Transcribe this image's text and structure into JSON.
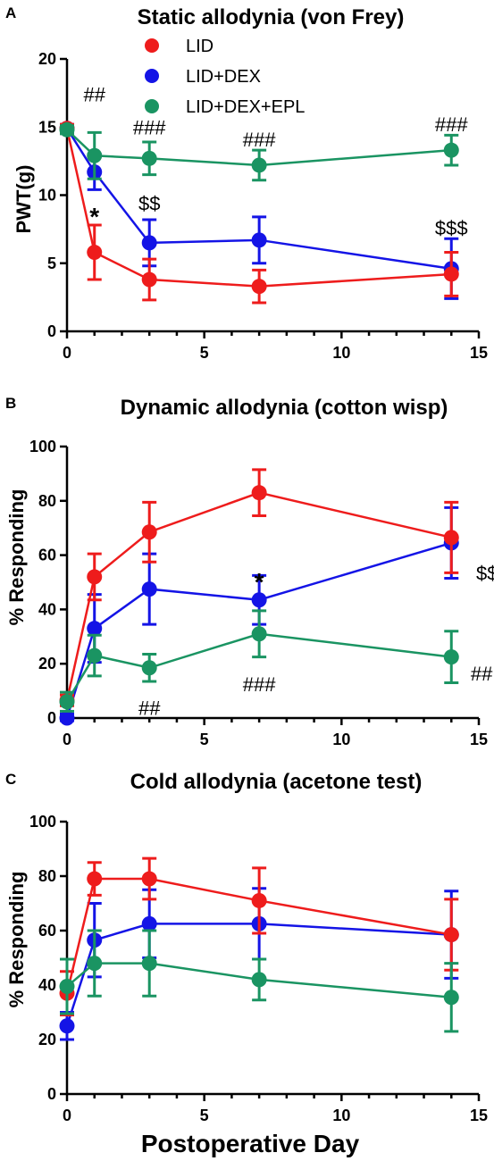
{
  "colors": {
    "LID": "#ee1c1c",
    "LID+DEX": "#1414e6",
    "LID+DEX+EPL": "#1a9462"
  },
  "xlabel_common": "Postoperative Day",
  "chart_data": [
    {
      "panel": "A",
      "type": "line",
      "title": "Static allodynia (von Frey)",
      "xlabel": "",
      "ylabel": "PWT(g)",
      "xlim": [
        0,
        15
      ],
      "ylim": [
        0,
        20
      ],
      "xticks": [
        "0",
        "5",
        "10",
        "15"
      ],
      "yticks": [
        "0",
        "5",
        "10",
        "15",
        "20"
      ],
      "legend": {
        "placement": "top-left",
        "entries": [
          "LID",
          "LID+DEX",
          "LID+DEX+EPL"
        ]
      },
      "series": [
        {
          "name": "LID",
          "color": "#ee1c1c",
          "x": [
            0,
            1,
            3,
            7,
            14
          ],
          "y": [
            14.9,
            5.8,
            3.8,
            3.3,
            4.2
          ],
          "err": [
            0.3,
            2.0,
            1.5,
            1.2,
            1.6
          ]
        },
        {
          "name": "LID+DEX",
          "color": "#1414e6",
          "x": [
            0,
            1,
            3,
            7,
            14
          ],
          "y": [
            14.9,
            11.7,
            6.5,
            6.7,
            4.6
          ],
          "err": [
            0.3,
            1.3,
            1.7,
            1.7,
            2.2
          ]
        },
        {
          "name": "LID+DEX+EPL",
          "color": "#1a9462",
          "x": [
            0,
            1,
            3,
            7,
            14
          ],
          "y": [
            14.8,
            12.9,
            12.7,
            12.2,
            13.3
          ],
          "err": [
            0.3,
            1.7,
            1.2,
            1.1,
            1.1
          ]
        }
      ],
      "annotations": [
        {
          "text": "##",
          "x": 1,
          "y": 17.4,
          "style": "normal"
        },
        {
          "text": "###",
          "x": 3,
          "y": 15.0,
          "style": "normal"
        },
        {
          "text": "###",
          "x": 7,
          "y": 14.1,
          "style": "normal"
        },
        {
          "text": "###",
          "x": 14,
          "y": 15.2,
          "style": "normal"
        },
        {
          "text": "*",
          "x": 1,
          "y": 8.6,
          "style": "star"
        },
        {
          "text": "$$",
          "x": 3,
          "y": 9.4,
          "style": "normal"
        },
        {
          "text": "$$$",
          "x": 14,
          "y": 7.6,
          "style": "normal"
        }
      ]
    },
    {
      "panel": "B",
      "type": "line",
      "title": "Dynamic allodynia (cotton wisp)",
      "xlabel": "",
      "ylabel": "% Responding",
      "xlim": [
        0,
        15
      ],
      "ylim": [
        0,
        100
      ],
      "xticks": [
        "0",
        "5",
        "10",
        "15"
      ],
      "yticks": [
        "0",
        "20",
        "40",
        "60",
        "80",
        "100"
      ],
      "series": [
        {
          "name": "LID",
          "color": "#ee1c1c",
          "x": [
            0,
            1,
            3,
            7,
            14
          ],
          "y": [
            6.5,
            52,
            68.5,
            83,
            66.5
          ],
          "err": [
            2,
            8.5,
            11,
            8.5,
            13
          ]
        },
        {
          "name": "LID+DEX",
          "color": "#1414e6",
          "x": [
            0,
            1,
            3,
            7,
            14
          ],
          "y": [
            0,
            33,
            47.5,
            43.5,
            64.5
          ],
          "err": [
            1.5,
            12.5,
            13,
            9,
            13
          ]
        },
        {
          "name": "LID+DEX+EPL",
          "color": "#1a9462",
          "x": [
            0,
            1,
            3,
            7,
            14
          ],
          "y": [
            6,
            23,
            18.5,
            31,
            22.5
          ],
          "err": [
            3.5,
            7.5,
            5,
            8.5,
            9.5
          ]
        }
      ],
      "annotations": [
        {
          "text": "##",
          "x": 3,
          "y": 3.8,
          "style": "normal"
        },
        {
          "text": "*",
          "x": 7,
          "y": 51,
          "style": "star"
        },
        {
          "text": "###",
          "x": 7,
          "y": 12.5,
          "style": "normal"
        },
        {
          "text": "$$",
          "x": 15.3,
          "y": 53.5,
          "style": "normal"
        },
        {
          "text": "##",
          "x": 15.1,
          "y": 16.5,
          "style": "normal"
        }
      ]
    },
    {
      "panel": "C",
      "type": "line",
      "title": "Cold allodynia (acetone test)",
      "xlabel": "Postoperative Day",
      "ylabel": "% Responding",
      "xlim": [
        0,
        15
      ],
      "ylim": [
        0,
        100
      ],
      "xticks": [
        "0",
        "5",
        "10",
        "15"
      ],
      "yticks": [
        "0",
        "20",
        "40",
        "60",
        "80",
        "100"
      ],
      "series": [
        {
          "name": "LID",
          "color": "#ee1c1c",
          "x": [
            0,
            1,
            3,
            7,
            14
          ],
          "y": [
            37,
            79,
            79,
            71,
            58.5
          ],
          "err": [
            8,
            6,
            7.5,
            12,
            13
          ]
        },
        {
          "name": "LID+DEX",
          "color": "#1414e6",
          "x": [
            0,
            1,
            3,
            7,
            14
          ],
          "y": [
            25,
            56.5,
            62.5,
            62.5,
            58.5
          ],
          "err": [
            5,
            13.5,
            12.5,
            13,
            16
          ]
        },
        {
          "name": "LID+DEX+EPL",
          "color": "#1a9462",
          "x": [
            0,
            1,
            3,
            7,
            14
          ],
          "y": [
            39.5,
            48,
            48,
            42,
            35.5
          ],
          "err": [
            10,
            12,
            12,
            7.5,
            12.5
          ]
        }
      ],
      "annotations": []
    }
  ]
}
